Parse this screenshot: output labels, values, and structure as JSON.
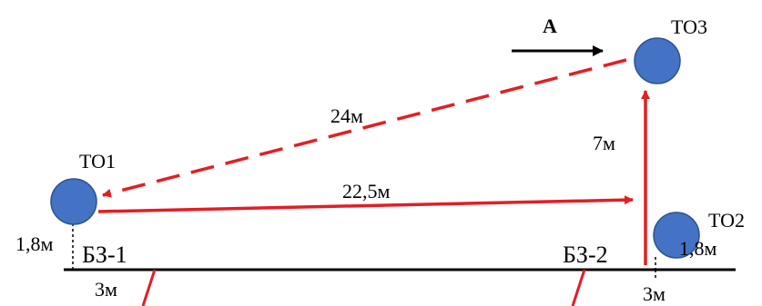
{
  "nodes": {
    "to1": {
      "label": "ТО1"
    },
    "to2": {
      "label": "ТО2"
    },
    "to3": {
      "label": "ТО3"
    }
  },
  "zones": {
    "bz1": {
      "label": "БЗ-1"
    },
    "bz2": {
      "label": "БЗ-2"
    }
  },
  "distances": {
    "to3_to_to1": "24м",
    "to1_to_to2": "22,5м",
    "bz2_to_to3": "7м",
    "to1_height": "1,8м",
    "to2_height": "1,8м",
    "bz1_offset": "3м",
    "bz2_offset": "3м"
  },
  "direction": {
    "label": "А"
  },
  "colors": {
    "node_fill": "#4472C4",
    "node_stroke": "#2F528F",
    "route": "#E31E24",
    "ground": "#000000"
  }
}
